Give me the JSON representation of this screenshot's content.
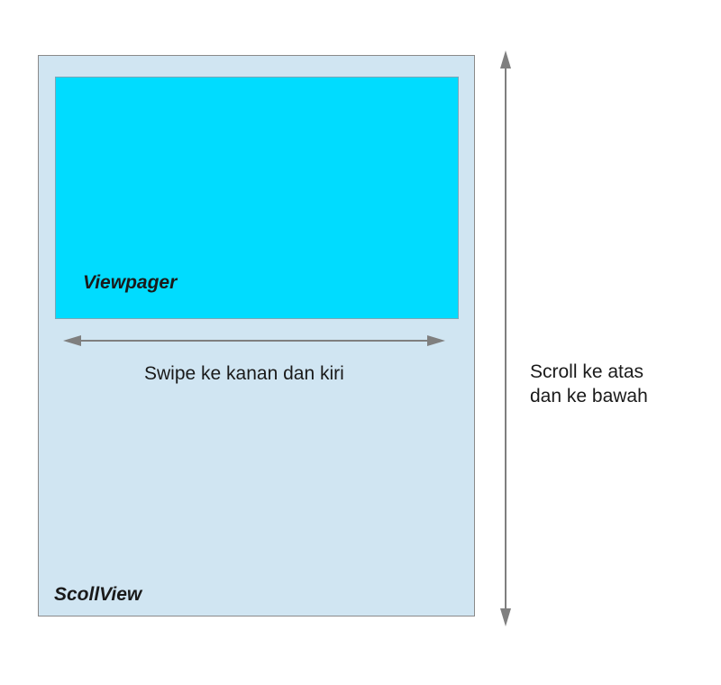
{
  "scrollview": {
    "label": "ScollView"
  },
  "viewpager": {
    "label": "Viewpager"
  },
  "horizontal_arrow": {
    "caption": "Swipe ke kanan dan kiri"
  },
  "vertical_arrow": {
    "caption_line1": "Scroll ke atas",
    "caption_line2": "dan ke bawah"
  },
  "colors": {
    "scrollview_fill": "#d0e5f2",
    "viewpager_fill": "#00dcff",
    "arrow": "#7f7f7f"
  }
}
